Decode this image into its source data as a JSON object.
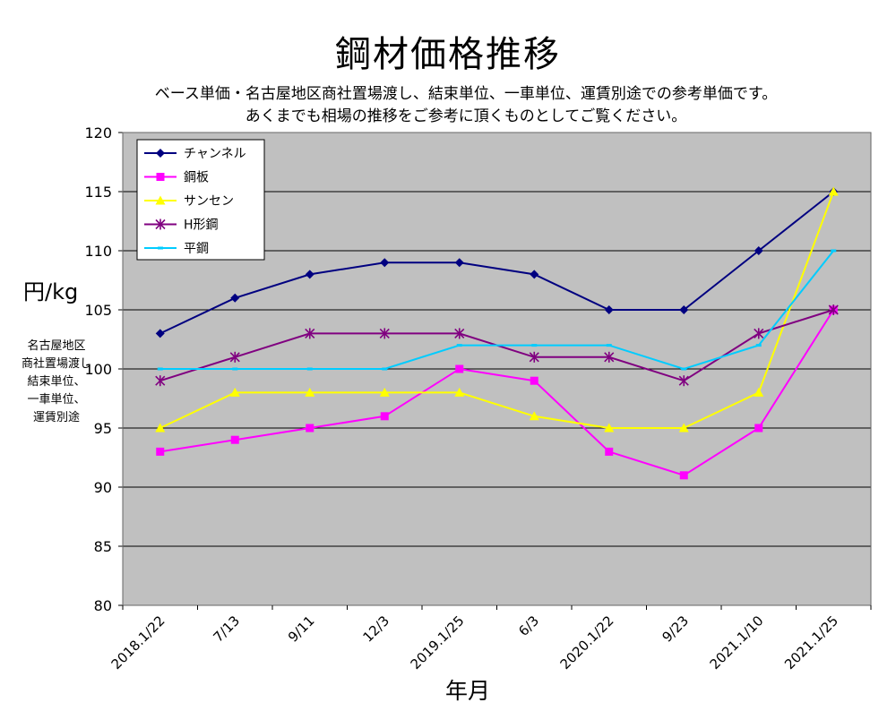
{
  "chart_data": {
    "type": "line",
    "title": "鋼材価格推移",
    "subtitle_lines": [
      "ベース単価・名古屋地区商社置場渡し、結束単位、一車単位、運賃別途での参考単価です。",
      "あくまでも相場の推移をご参考に頂くものとしてご覧ください。"
    ],
    "ylabel": "円/kg",
    "ylabel_note": [
      "名古屋地区",
      "商社置場渡し",
      "結束単位、",
      "一車単位、",
      "運賃別途"
    ],
    "xlabel": "年月",
    "categories": [
      "2018.1/22",
      "7/13",
      "9/11",
      "12/3",
      "2019.1/25",
      "6/3",
      "2020.1/22",
      "9/23",
      "2021.1/10",
      "2021.1/25"
    ],
    "ylim": [
      80,
      120
    ],
    "yticks": [
      80,
      85,
      90,
      95,
      100,
      105,
      110,
      115,
      120
    ],
    "grid": true,
    "legend_position": "top-left",
    "plot_background": "#c0c0c0",
    "series": [
      {
        "name": "チャンネル",
        "color": "#000080",
        "marker": "diamond",
        "values": [
          103,
          106,
          108,
          109,
          109,
          108,
          105,
          105,
          110,
          115
        ]
      },
      {
        "name": "鋼板",
        "color": "#ff00ff",
        "marker": "square",
        "values": [
          93,
          94,
          95,
          96,
          100,
          99,
          93,
          91,
          95,
          105
        ]
      },
      {
        "name": "サンセン",
        "color": "#ffff00",
        "marker": "triangle",
        "values": [
          95,
          98,
          98,
          98,
          98,
          96,
          95,
          95,
          98,
          115
        ]
      },
      {
        "name": "H形鋼",
        "color": "#800080",
        "marker": "asterisk",
        "values": [
          99,
          101,
          103,
          103,
          103,
          101,
          101,
          99,
          103,
          105
        ]
      },
      {
        "name": "平鋼",
        "color": "#00ccff",
        "marker": "dash",
        "values": [
          100,
          100,
          100,
          100,
          102,
          102,
          102,
          100,
          102,
          110
        ]
      }
    ]
  }
}
